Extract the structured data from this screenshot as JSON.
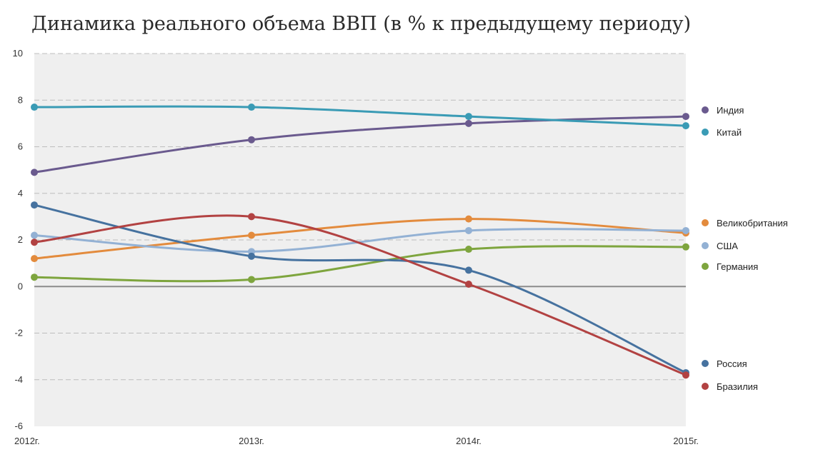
{
  "chart_data": {
    "type": "line",
    "title": "Динамика реального объема ВВП (в % к предыдущему периоду)",
    "categories": [
      "2012г.",
      "2013г.",
      "2014г.",
      "2015г."
    ],
    "ylim": [
      -6,
      10
    ],
    "yticks": [
      10,
      8,
      6,
      4,
      2,
      0,
      -2,
      -4,
      -6
    ],
    "grid": true,
    "legend_position": "right",
    "smooth": true,
    "series": [
      {
        "name": "Индия",
        "color": "#6a5a8e",
        "values": [
          4.9,
          6.3,
          7.0,
          7.3
        ]
      },
      {
        "name": "Китай",
        "color": "#3a9bb5",
        "values": [
          7.7,
          7.7,
          7.3,
          6.9
        ]
      },
      {
        "name": "Великобритания",
        "color": "#e38b3d",
        "values": [
          1.2,
          2.2,
          2.9,
          2.3
        ]
      },
      {
        "name": "США",
        "color": "#93b1d4",
        "values": [
          2.2,
          1.5,
          2.4,
          2.4
        ]
      },
      {
        "name": "Германия",
        "color": "#7ea53e",
        "values": [
          0.4,
          0.3,
          1.6,
          1.7
        ]
      },
      {
        "name": "Россия",
        "color": "#46729f",
        "values": [
          3.5,
          1.3,
          0.7,
          -3.7
        ]
      },
      {
        "name": "Бразилия",
        "color": "#b24242",
        "values": [
          1.9,
          3.0,
          0.1,
          -3.8
        ]
      }
    ]
  }
}
